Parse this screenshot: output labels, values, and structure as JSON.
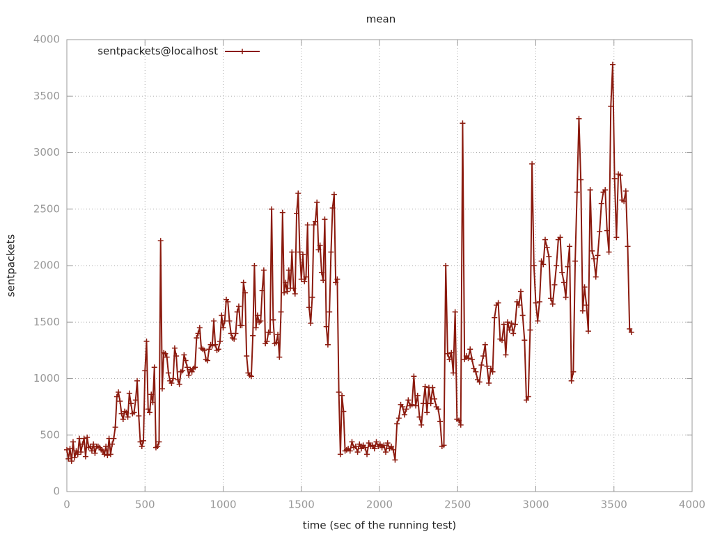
{
  "chart_data": {
    "type": "line",
    "title": "mean",
    "x_label": "time (sec of the running test)",
    "y_label": "sentpackets",
    "xlim": [
      0,
      4000
    ],
    "xticks": [
      0,
      500,
      1000,
      1500,
      2000,
      2500,
      3000,
      3500,
      4000
    ],
    "ylim": [
      0,
      4000
    ],
    "yticks": [
      0,
      500,
      1000,
      1500,
      2000,
      2500,
      3000,
      3500,
      4000
    ],
    "grid": true,
    "legend": "top-left",
    "series": [
      {
        "name": "sentpackets@localhost",
        "color": "#8b1a0e",
        "x": [
          0,
          10,
          20,
          30,
          40,
          50,
          60,
          70,
          80,
          90,
          100,
          110,
          120,
          130,
          140,
          150,
          160,
          170,
          180,
          190,
          200,
          210,
          220,
          230,
          240,
          250,
          260,
          270,
          280,
          290,
          300,
          310,
          320,
          330,
          340,
          350,
          360,
          370,
          380,
          390,
          400,
          410,
          420,
          430,
          440,
          450,
          460,
          470,
          480,
          490,
          500,
          510,
          520,
          530,
          540,
          550,
          560,
          570,
          580,
          590,
          600,
          610,
          620,
          630,
          640,
          650,
          660,
          670,
          680,
          690,
          700,
          710,
          720,
          730,
          740,
          750,
          760,
          770,
          780,
          790,
          800,
          810,
          820,
          830,
          840,
          850,
          860,
          870,
          880,
          890,
          900,
          910,
          920,
          930,
          940,
          950,
          960,
          970,
          980,
          990,
          1000,
          1010,
          1020,
          1030,
          1040,
          1050,
          1060,
          1070,
          1080,
          1090,
          1100,
          1110,
          1120,
          1130,
          1140,
          1150,
          1160,
          1170,
          1180,
          1190,
          1200,
          1210,
          1220,
          1230,
          1240,
          1250,
          1260,
          1270,
          1280,
          1290,
          1300,
          1310,
          1320,
          1330,
          1340,
          1350,
          1360,
          1370,
          1380,
          1390,
          1400,
          1410,
          1420,
          1430,
          1440,
          1450,
          1460,
          1470,
          1480,
          1490,
          1500,
          1510,
          1520,
          1530,
          1540,
          1550,
          1560,
          1570,
          1580,
          1590,
          1600,
          1610,
          1620,
          1630,
          1640,
          1650,
          1660,
          1670,
          1680,
          1690,
          1700,
          1710,
          1720,
          1730,
          1740,
          1750,
          1760,
          1770,
          1780,
          1790,
          1800,
          1812,
          1824,
          1836,
          1848,
          1860,
          1872,
          1884,
          1896,
          1908,
          1920,
          1932,
          1944,
          1956,
          1968,
          1980,
          1992,
          2004,
          2016,
          2028,
          2040,
          2052,
          2064,
          2076,
          2088,
          2100,
          2112,
          2124,
          2136,
          2148,
          2160,
          2172,
          2184,
          2196,
          2208,
          2220,
          2232,
          2244,
          2256,
          2268,
          2280,
          2292,
          2304,
          2316,
          2328,
          2340,
          2352,
          2364,
          2376,
          2388,
          2400,
          2412,
          2424,
          2436,
          2448,
          2460,
          2472,
          2484,
          2496,
          2508,
          2520,
          2532,
          2544,
          2556,
          2568,
          2580,
          2592,
          2604,
          2616,
          2628,
          2640,
          2652,
          2664,
          2676,
          2688,
          2700,
          2712,
          2724,
          2736,
          2748,
          2760,
          2772,
          2784,
          2796,
          2808,
          2820,
          2832,
          2844,
          2856,
          2868,
          2880,
          2892,
          2904,
          2916,
          2928,
          2940,
          2952,
          2964,
          2976,
          2988,
          3000,
          3012,
          3024,
          3036,
          3048,
          3060,
          3072,
          3084,
          3096,
          3108,
          3120,
          3132,
          3144,
          3156,
          3168,
          3180,
          3192,
          3204,
          3216,
          3228,
          3240,
          3252,
          3264,
          3276,
          3288,
          3300,
          3312,
          3324,
          3336,
          3348,
          3360,
          3372,
          3384,
          3396,
          3408,
          3420,
          3432,
          3444,
          3456,
          3468,
          3480,
          3492,
          3504,
          3516,
          3528,
          3540,
          3552,
          3564,
          3576,
          3588,
          3600,
          3612
        ],
        "values": [
          370,
          290,
          380,
          270,
          440,
          300,
          360,
          330,
          470,
          350,
          420,
          470,
          310,
          480,
          390,
          400,
          360,
          420,
          340,
          400,
          400,
          390,
          370,
          360,
          330,
          400,
          320,
          470,
          330,
          420,
          470,
          570,
          840,
          880,
          800,
          690,
          640,
          710,
          700,
          660,
          870,
          780,
          690,
          700,
          810,
          980,
          670,
          440,
          400,
          450,
          1070,
          1330,
          730,
          700,
          860,
          790,
          1100,
          390,
          400,
          440,
          2220,
          910,
          1230,
          1220,
          1190,
          1050,
          980,
          960,
          1000,
          1270,
          1200,
          990,
          950,
          1060,
          1070,
          1210,
          1160,
          1100,
          1030,
          1080,
          1060,
          1090,
          1100,
          1360,
          1400,
          1450,
          1270,
          1260,
          1250,
          1170,
          1160,
          1260,
          1300,
          1290,
          1510,
          1300,
          1250,
          1260,
          1330,
          1560,
          1450,
          1510,
          1700,
          1680,
          1510,
          1400,
          1360,
          1350,
          1400,
          1590,
          1640,
          1470,
          1470,
          1850,
          1760,
          1200,
          1050,
          1030,
          1020,
          1380,
          2000,
          1450,
          1560,
          1500,
          1510,
          1780,
          1960,
          1310,
          1330,
          1410,
          1410,
          2500,
          1520,
          1310,
          1320,
          1390,
          1190,
          1590,
          2470,
          1760,
          1850,
          1770,
          1960,
          1800,
          2120,
          1800,
          1750,
          2460,
          2640,
          2120,
          1880,
          2100,
          1860,
          1900,
          2360,
          1630,
          1490,
          1720,
          2360,
          2390,
          2560,
          2140,
          2180,
          1940,
          1870,
          2410,
          1460,
          1300,
          1590,
          2120,
          2510,
          2630,
          1850,
          1880,
          880,
          330,
          850,
          710,
          360,
          370,
          380,
          360,
          440,
          390,
          400,
          350,
          420,
          380,
          410,
          390,
          330,
          430,
          400,
          410,
          380,
          440,
          400,
          420,
          390,
          410,
          350,
          430,
          380,
          400,
          370,
          280,
          600,
          650,
          770,
          750,
          680,
          730,
          810,
          760,
          770,
          1020,
          760,
          850,
          660,
          590,
          780,
          930,
          700,
          920,
          780,
          920,
          820,
          750,
          730,
          620,
          400,
          410,
          2000,
          1220,
          1170,
          1230,
          1050,
          1590,
          640,
          630,
          590,
          3260,
          1170,
          1200,
          1180,
          1260,
          1170,
          1090,
          1060,
          990,
          970,
          1120,
          1200,
          1300,
          1110,
          960,
          1090,
          1060,
          1540,
          1650,
          1670,
          1350,
          1340,
          1480,
          1210,
          1500,
          1430,
          1490,
          1400,
          1480,
          1680,
          1650,
          1770,
          1560,
          1340,
          810,
          840,
          1430,
          2900,
          2000,
          1670,
          1510,
          1680,
          2040,
          2010,
          2230,
          2160,
          2080,
          1710,
          1660,
          1830,
          2000,
          2230,
          2250,
          1940,
          1850,
          1720,
          1990,
          2170,
          980,
          1060,
          2040,
          2650,
          3300,
          2760,
          1600,
          1810,
          1650,
          1420,
          2670,
          2130,
          2060,
          1900,
          2090,
          2300,
          2550,
          2650,
          2670,
          2310,
          2120,
          3410,
          3780,
          2770,
          2250,
          2810,
          2800,
          2580,
          2570,
          2660,
          2170,
          1440,
          1410
        ]
      }
    ]
  }
}
